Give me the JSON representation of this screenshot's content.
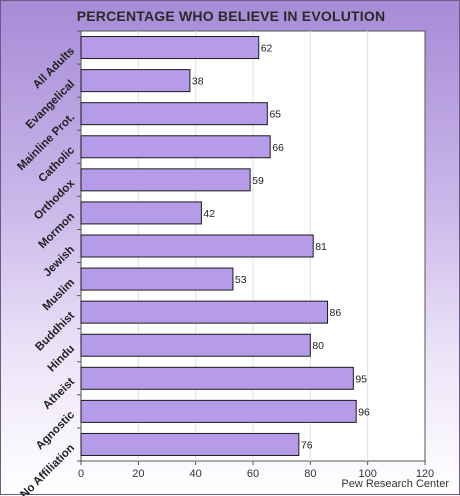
{
  "chart_data": {
    "type": "bar",
    "orientation": "horizontal",
    "title": "PERCENTAGE WHO BELIEVE IN EVOLUTION",
    "categories": [
      "All Adults",
      "Evangelical",
      "Mainline Prot.",
      "Catholic",
      "Orthodox",
      "Mormon",
      "Jewish",
      "Muslim",
      "Buddhist",
      "Hindu",
      "Atheist",
      "Agnostic",
      "No Affiliation"
    ],
    "values": [
      62,
      38,
      65,
      66,
      59,
      42,
      81,
      53,
      86,
      80,
      95,
      96,
      76
    ],
    "xlim": [
      0,
      120
    ],
    "xticks": [
      0,
      20,
      40,
      60,
      80,
      100,
      120
    ],
    "grid": true,
    "data_labels": true,
    "source": "Pew Research Center",
    "colors": {
      "bar_fill": "#b69be8",
      "bar_stroke": "#1a1a1a",
      "plot_bg": "#ffffff"
    }
  }
}
